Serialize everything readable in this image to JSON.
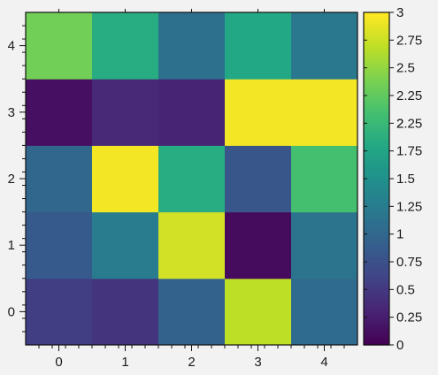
{
  "chart_data": {
    "type": "heatmap",
    "title": "",
    "xlabel": "",
    "ylabel": "",
    "x": [
      0,
      1,
      2,
      3,
      4
    ],
    "y": [
      0,
      1,
      2,
      3,
      4
    ],
    "x_tick_labels": [
      "0",
      "1",
      "2",
      "3",
      "4"
    ],
    "y_tick_labels": [
      "0",
      "1",
      "2",
      "3",
      "4"
    ],
    "values": [
      [
        0.55,
        0.45,
        0.95,
        2.7,
        1.05
      ],
      [
        0.85,
        1.25,
        2.8,
        0.08,
        1.15
      ],
      [
        1.0,
        2.95,
        1.85,
        0.8,
        2.1
      ],
      [
        0.12,
        0.35,
        0.3,
        2.95,
        2.95
      ],
      [
        2.35,
        1.85,
        1.1,
        1.8,
        1.2
      ]
    ],
    "colorbar": {
      "colormap": "viridis",
      "range": [
        0,
        3
      ],
      "tick_labels": [
        "0",
        "0.25",
        "0.5",
        "0.75",
        "1",
        "1.25",
        "1.5",
        "1.75",
        "2",
        "2.25",
        "2.25",
        "2.5",
        "2.75",
        "3"
      ]
    },
    "grid": false
  }
}
